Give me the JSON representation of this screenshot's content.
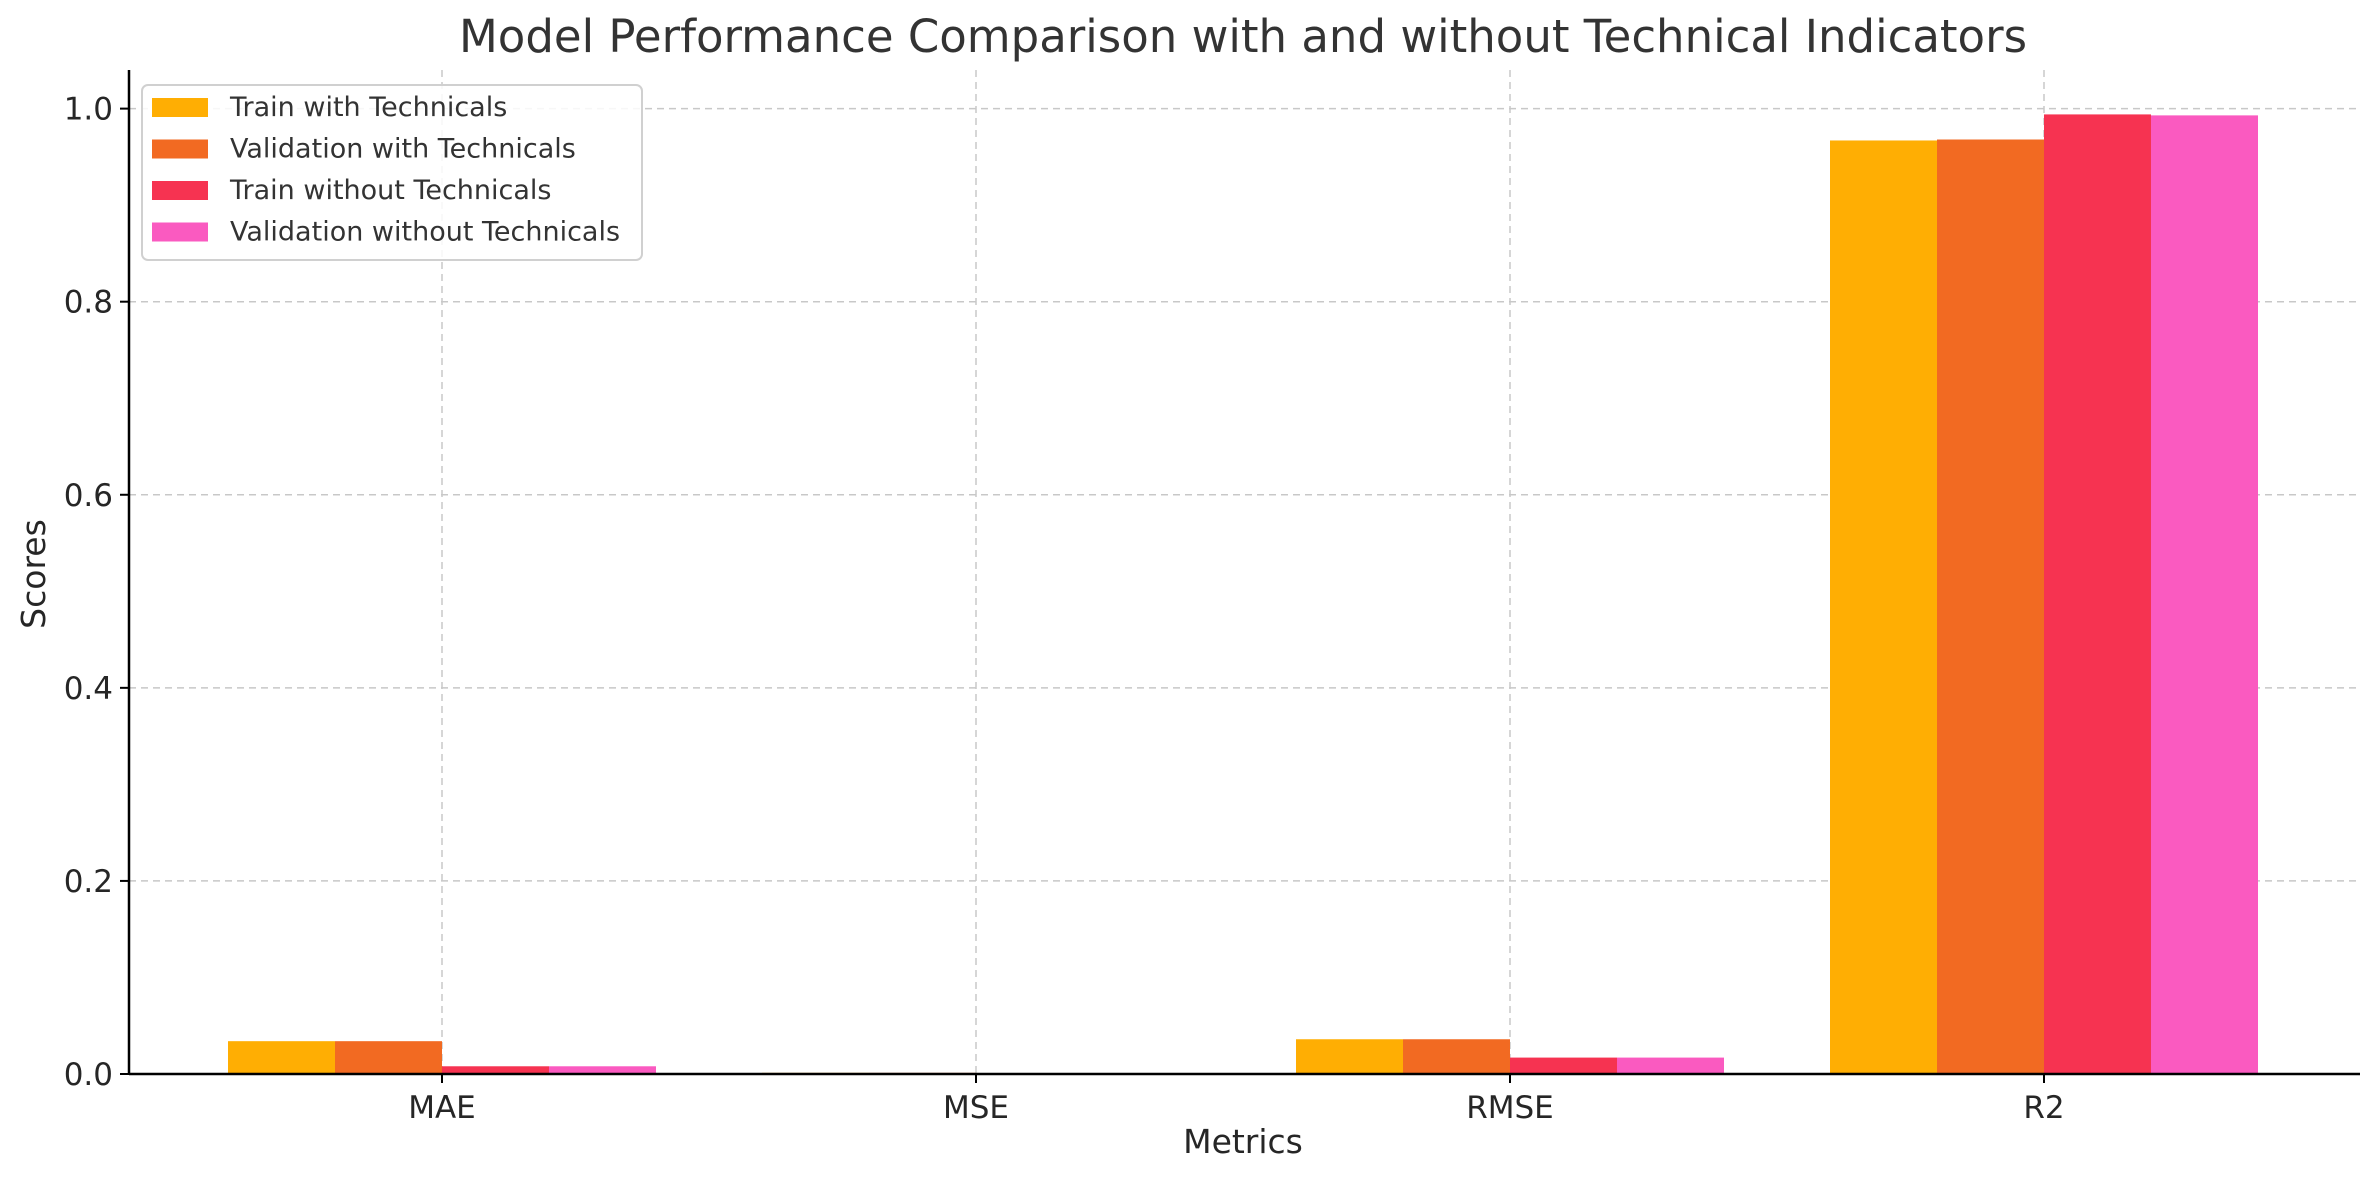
{
  "chart_data": {
    "type": "bar",
    "title": "Model Performance Comparison with and without Technical Indicators",
    "xlabel": "Metrics",
    "ylabel": "Scores",
    "categories": [
      "MAE",
      "MSE",
      "RMSE",
      "R2"
    ],
    "ylim": [
      0,
      1.04
    ],
    "yticks": [
      "0.0",
      "0.2",
      "0.4",
      "0.6",
      "0.8",
      "1.0"
    ],
    "grid": true,
    "legend_position": "top-left",
    "series": [
      {
        "name": "Train with Technicals",
        "color": "#FFAE03",
        "values": [
          0.034,
          0.0012,
          0.036,
          0.967
        ]
      },
      {
        "name": "Validation with Technicals",
        "color": "#F26A22",
        "values": [
          0.034,
          0.0012,
          0.036,
          0.968
        ]
      },
      {
        "name": "Train without Technicals",
        "color": "#F63351",
        "values": [
          0.008,
          0.0003,
          0.017,
          0.994
        ]
      },
      {
        "name": "Validation without Technicals",
        "color": "#FA5AC0",
        "values": [
          0.008,
          0.0003,
          0.017,
          0.993
        ]
      }
    ]
  }
}
